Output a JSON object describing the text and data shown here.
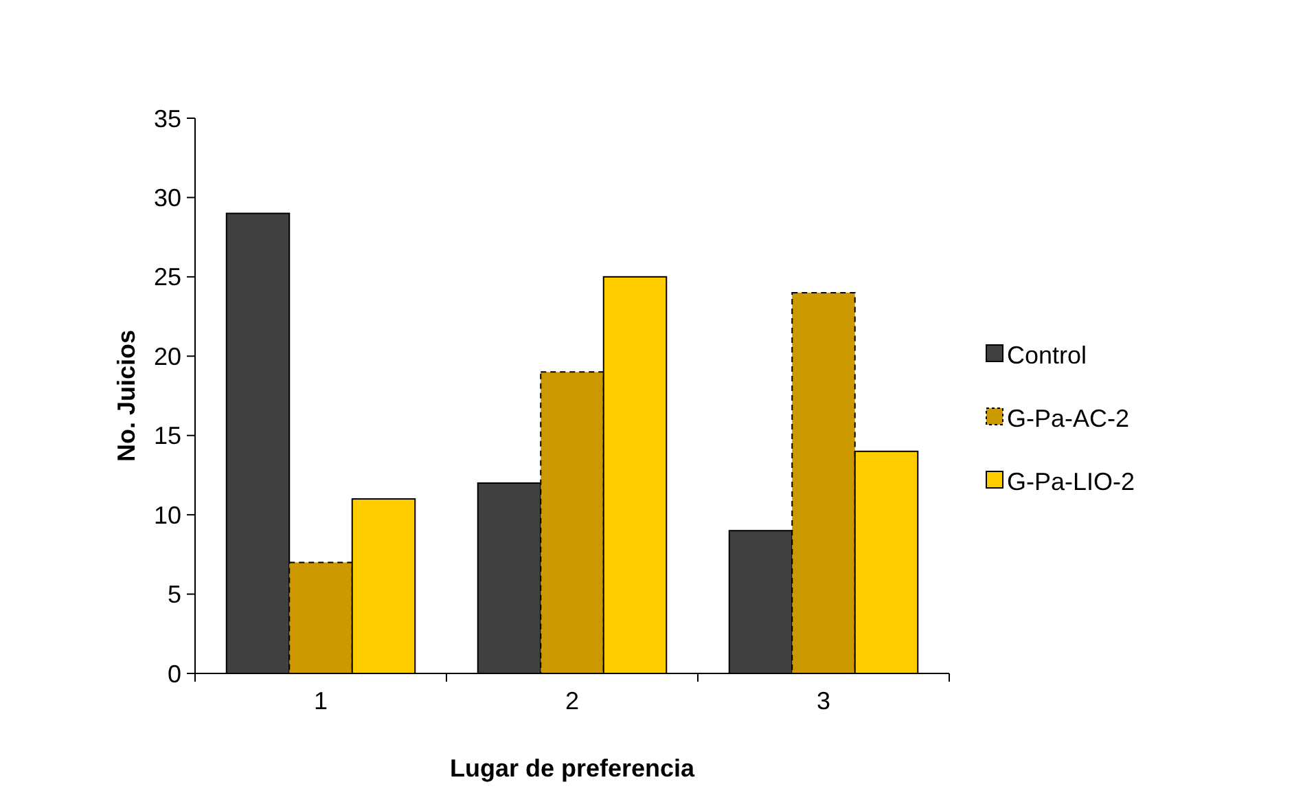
{
  "chart_data": {
    "type": "bar",
    "xlabel": "Lugar de preferencia",
    "ylabel": "No. Juicios",
    "categories": [
      "1",
      "2",
      "3"
    ],
    "series": [
      {
        "name": "Control",
        "color": "#404040",
        "values": [
          29,
          12,
          9
        ]
      },
      {
        "name": "G-Pa-AC-2",
        "color": "#cc9900",
        "values": [
          7,
          19,
          24
        ],
        "line_style": "dashed"
      },
      {
        "name": "G-Pa-LIO-2",
        "color": "#ffcc00",
        "values": [
          11,
          25,
          14
        ]
      }
    ],
    "ylim": [
      0,
      35
    ],
    "yticks": [
      0,
      5,
      10,
      15,
      20,
      25,
      30,
      35
    ],
    "grid": false,
    "legend": "right"
  }
}
